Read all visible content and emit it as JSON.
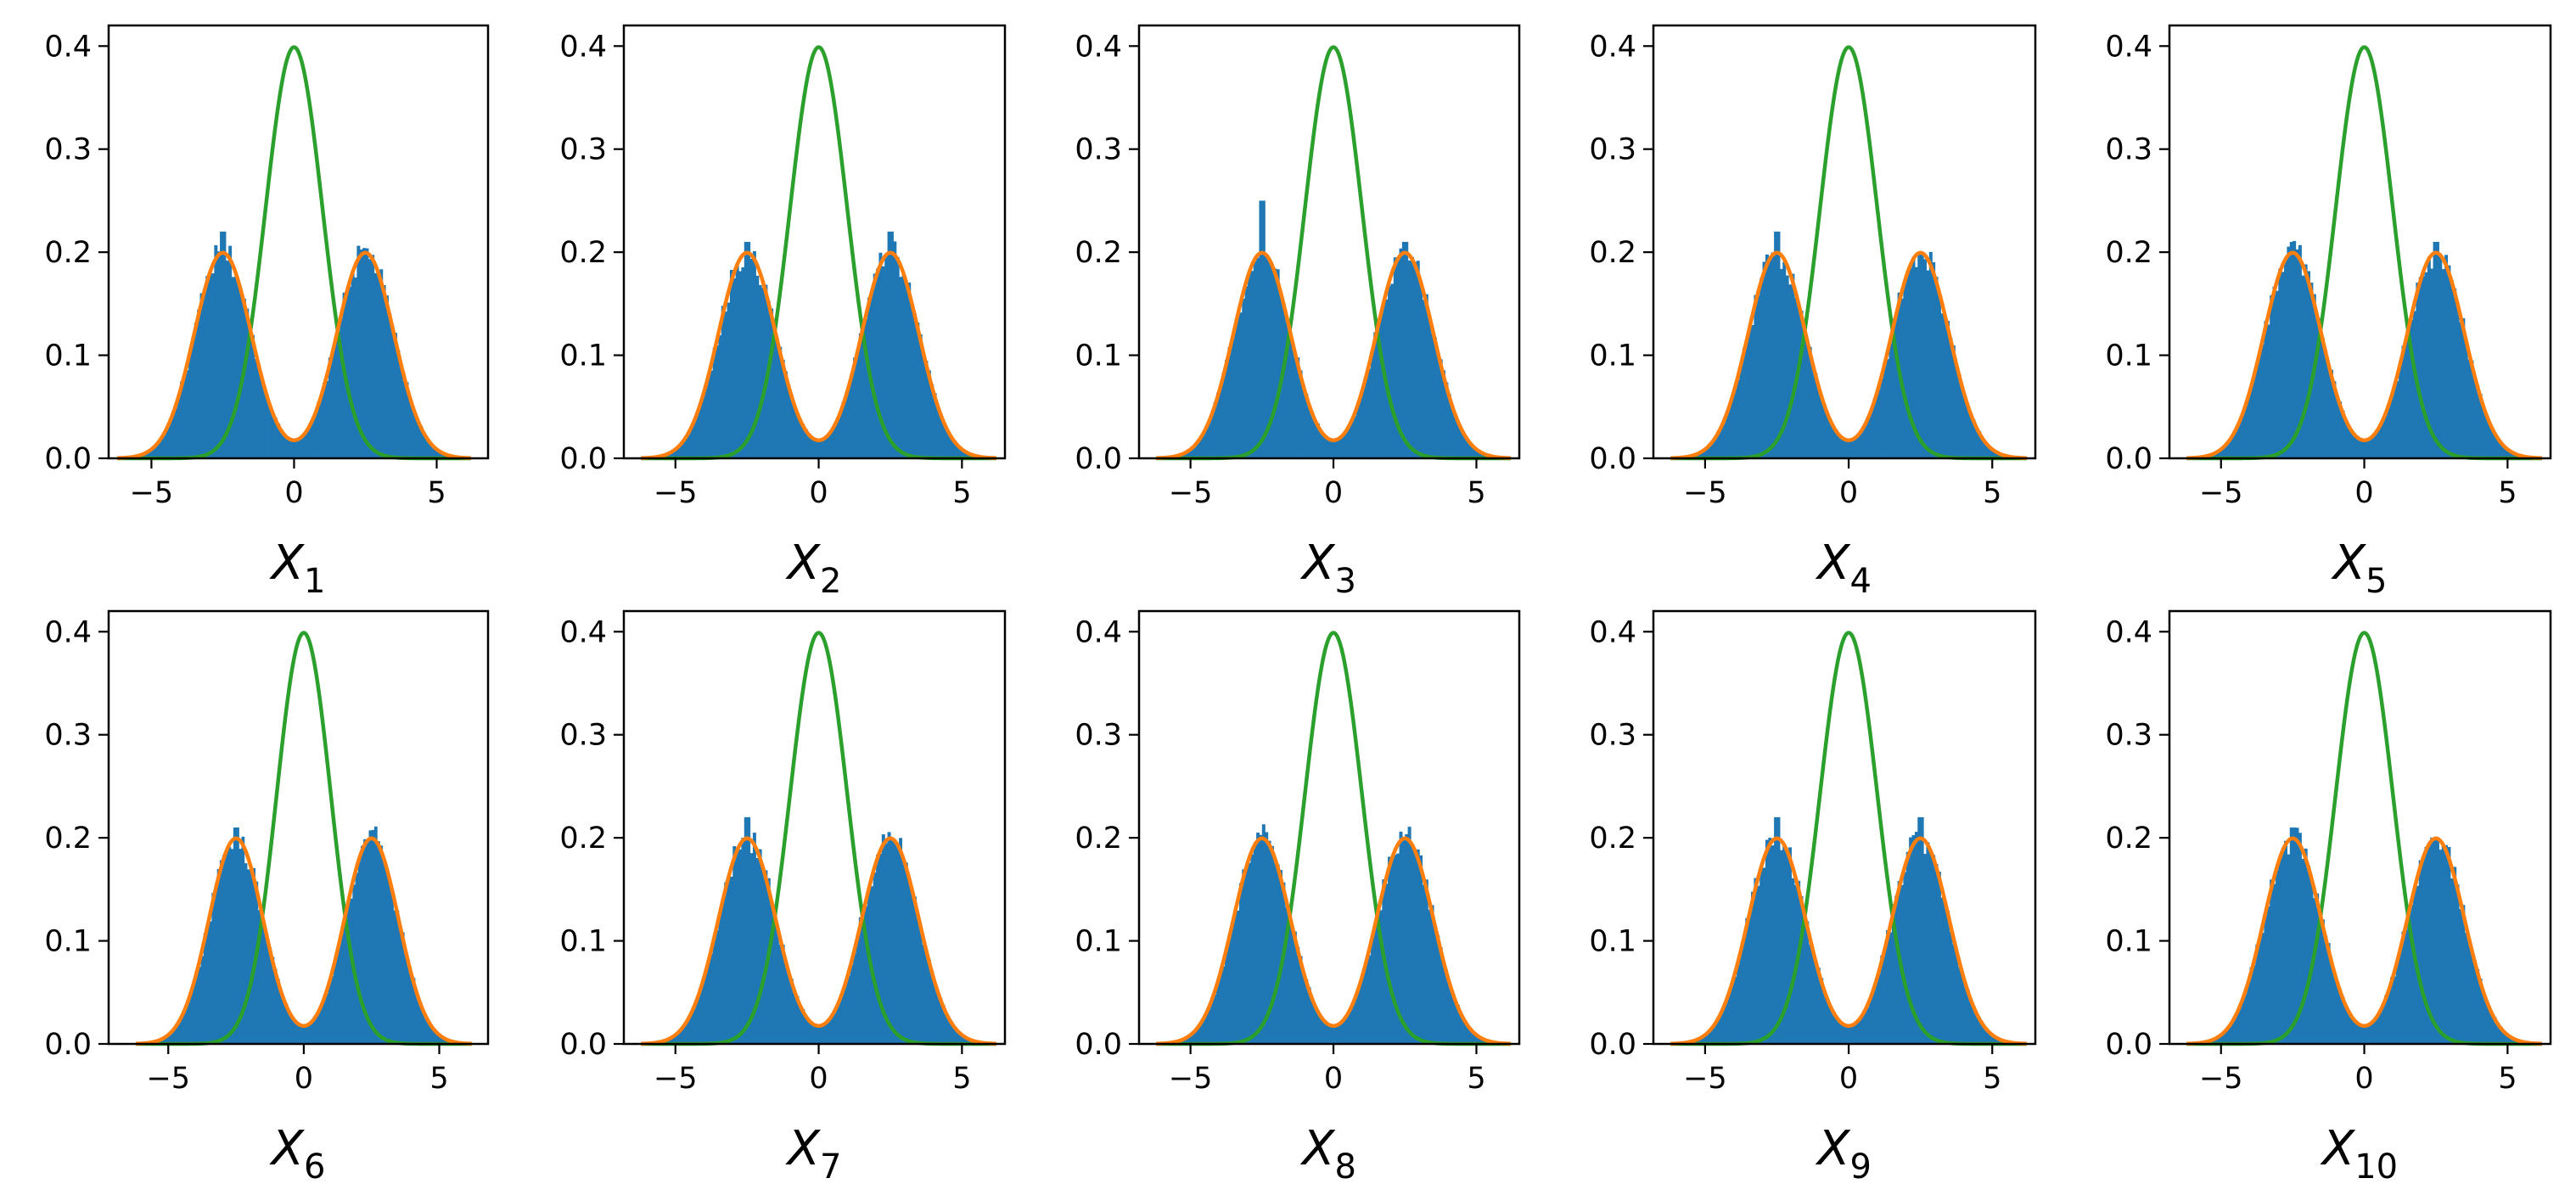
{
  "figure": {
    "layout": "2 rows x 5 columns grid of histogram panels"
  },
  "colors": {
    "histogram": "#1f77b4",
    "mixture_pdf": "#ff7f0e",
    "standard_normal_pdf": "#2ca02c",
    "axes": "#000000"
  },
  "chart_data": [
    {
      "type": "bar",
      "title": "",
      "xlabel_var": "X",
      "xlabel_sub": "1",
      "xlim": [
        -6.5,
        6.8
      ],
      "ylim": [
        0,
        0.42
      ],
      "xticks": [
        -5,
        0,
        5
      ],
      "xtick_labels": [
        "−5",
        "0",
        "5"
      ],
      "yticks": [
        0,
        0.1,
        0.2,
        0.3,
        0.4
      ],
      "ytick_labels": [
        "0.0",
        "0.1",
        "0.2",
        "0.3",
        "0.4"
      ],
      "grid": false,
      "mixture_means": [
        -2.5,
        2.5
      ],
      "mixture_sd": 1.0,
      "standard_normal_peak": 0.4,
      "histogram_peaks": [
        0.22,
        0.19
      ]
    },
    {
      "type": "bar",
      "title": "",
      "xlabel_var": "X",
      "xlabel_sub": "2",
      "xlim": [
        -6.8,
        6.5
      ],
      "ylim": [
        0,
        0.42
      ],
      "xticks": [
        -5,
        0,
        5
      ],
      "xtick_labels": [
        "−5",
        "0",
        "5"
      ],
      "yticks": [
        0,
        0.1,
        0.2,
        0.3,
        0.4
      ],
      "ytick_labels": [
        "0.0",
        "0.1",
        "0.2",
        "0.3",
        "0.4"
      ],
      "grid": false,
      "mixture_means": [
        -2.5,
        2.5
      ],
      "mixture_sd": 1.0,
      "standard_normal_peak": 0.4,
      "histogram_peaks": [
        0.21,
        0.22
      ]
    },
    {
      "type": "bar",
      "title": "",
      "xlabel_var": "X",
      "xlabel_sub": "3",
      "xlim": [
        -6.8,
        6.5
      ],
      "ylim": [
        0,
        0.42
      ],
      "xticks": [
        -5,
        0,
        5
      ],
      "xtick_labels": [
        "−5",
        "0",
        "5"
      ],
      "yticks": [
        0,
        0.1,
        0.2,
        0.3,
        0.4
      ],
      "ytick_labels": [
        "0.0",
        "0.1",
        "0.2",
        "0.3",
        "0.4"
      ],
      "grid": false,
      "mixture_means": [
        -2.5,
        2.5
      ],
      "mixture_sd": 1.0,
      "standard_normal_peak": 0.4,
      "histogram_peaks": [
        0.25,
        0.21
      ]
    },
    {
      "type": "bar",
      "title": "",
      "xlabel_var": "X",
      "xlabel_sub": "4",
      "xlim": [
        -6.8,
        6.5
      ],
      "ylim": [
        0,
        0.42
      ],
      "xticks": [
        -5,
        0,
        5
      ],
      "xtick_labels": [
        "−5",
        "0",
        "5"
      ],
      "yticks": [
        0,
        0.1,
        0.2,
        0.3,
        0.4
      ],
      "ytick_labels": [
        "0.0",
        "0.1",
        "0.2",
        "0.3",
        "0.4"
      ],
      "grid": false,
      "mixture_means": [
        -2.5,
        2.5
      ],
      "mixture_sd": 1.0,
      "standard_normal_peak": 0.4,
      "histogram_peaks": [
        0.22,
        0.2
      ]
    },
    {
      "type": "bar",
      "title": "",
      "xlabel_var": "X",
      "xlabel_sub": "5",
      "xlim": [
        -6.8,
        6.5
      ],
      "ylim": [
        0,
        0.42
      ],
      "xticks": [
        -5,
        0,
        5
      ],
      "xtick_labels": [
        "−5",
        "0",
        "5"
      ],
      "yticks": [
        0,
        0.1,
        0.2,
        0.3,
        0.4
      ],
      "ytick_labels": [
        "0.0",
        "0.1",
        "0.2",
        "0.3",
        "0.4"
      ],
      "grid": false,
      "mixture_means": [
        -2.5,
        2.5
      ],
      "mixture_sd": 1.0,
      "standard_normal_peak": 0.4,
      "histogram_peaks": [
        0.21,
        0.21
      ]
    },
    {
      "type": "bar",
      "title": "",
      "xlabel_var": "X",
      "xlabel_sub": "6",
      "xlim": [
        -7.2,
        6.8
      ],
      "ylim": [
        0,
        0.42
      ],
      "xticks": [
        -5,
        0,
        5
      ],
      "xtick_labels": [
        "−5",
        "0",
        "5"
      ],
      "yticks": [
        0,
        0.1,
        0.2,
        0.3,
        0.4
      ],
      "ytick_labels": [
        "0.0",
        "0.1",
        "0.2",
        "0.3",
        "0.4"
      ],
      "grid": false,
      "mixture_means": [
        -2.5,
        2.5
      ],
      "mixture_sd": 1.0,
      "standard_normal_peak": 0.4,
      "histogram_peaks": [
        0.21,
        0.2
      ]
    },
    {
      "type": "bar",
      "title": "",
      "xlabel_var": "X",
      "xlabel_sub": "7",
      "xlim": [
        -6.8,
        6.5
      ],
      "ylim": [
        0,
        0.42
      ],
      "xticks": [
        -5,
        0,
        5
      ],
      "xtick_labels": [
        "−5",
        "0",
        "5"
      ],
      "yticks": [
        0,
        0.1,
        0.2,
        0.3,
        0.4
      ],
      "ytick_labels": [
        "0.0",
        "0.1",
        "0.2",
        "0.3",
        "0.4"
      ],
      "grid": false,
      "mixture_means": [
        -2.5,
        2.5
      ],
      "mixture_sd": 1.0,
      "standard_normal_peak": 0.4,
      "histogram_peaks": [
        0.22,
        0.2
      ]
    },
    {
      "type": "bar",
      "title": "",
      "xlabel_var": "X",
      "xlabel_sub": "8",
      "xlim": [
        -6.8,
        6.5
      ],
      "ylim": [
        0,
        0.42
      ],
      "xticks": [
        -5,
        0,
        5
      ],
      "xtick_labels": [
        "−5",
        "0",
        "5"
      ],
      "yticks": [
        0,
        0.1,
        0.2,
        0.3,
        0.4
      ],
      "ytick_labels": [
        "0.0",
        "0.1",
        "0.2",
        "0.3",
        "0.4"
      ],
      "grid": false,
      "mixture_means": [
        -2.5,
        2.5
      ],
      "mixture_sd": 1.0,
      "standard_normal_peak": 0.4,
      "histogram_peaks": [
        0.2,
        0.2
      ]
    },
    {
      "type": "bar",
      "title": "",
      "xlabel_var": "X",
      "xlabel_sub": "9",
      "xlim": [
        -6.8,
        6.5
      ],
      "ylim": [
        0,
        0.42
      ],
      "xticks": [
        -5,
        0,
        5
      ],
      "xtick_labels": [
        "−5",
        "0",
        "5"
      ],
      "yticks": [
        0,
        0.1,
        0.2,
        0.3,
        0.4
      ],
      "ytick_labels": [
        "0.0",
        "0.1",
        "0.2",
        "0.3",
        "0.4"
      ],
      "grid": false,
      "mixture_means": [
        -2.5,
        2.5
      ],
      "mixture_sd": 1.0,
      "standard_normal_peak": 0.4,
      "histogram_peaks": [
        0.22,
        0.22
      ]
    },
    {
      "type": "bar",
      "title": "",
      "xlabel_var": "X",
      "xlabel_sub": "10",
      "xlim": [
        -6.8,
        6.5
      ],
      "ylim": [
        0,
        0.42
      ],
      "xticks": [
        -5,
        0,
        5
      ],
      "xtick_labels": [
        "−5",
        "0",
        "5"
      ],
      "yticks": [
        0,
        0.1,
        0.2,
        0.3,
        0.4
      ],
      "ytick_labels": [
        "0.0",
        "0.1",
        "0.2",
        "0.3",
        "0.4"
      ],
      "grid": false,
      "mixture_means": [
        -2.5,
        2.5
      ],
      "mixture_sd": 1.0,
      "standard_normal_peak": 0.4,
      "histogram_peaks": [
        0.21,
        0.2
      ]
    }
  ]
}
